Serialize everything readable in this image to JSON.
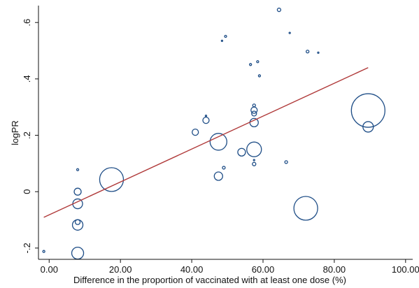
{
  "chart_data": {
    "type": "scatter",
    "xlabel": "Difference in the proportion of vaccinated with at least one dose (%)",
    "ylabel": "logPR",
    "xlim": [
      -3,
      102
    ],
    "ylim": [
      -0.24,
      0.66
    ],
    "x_ticks": [
      {
        "value": 0,
        "label": "0.00"
      },
      {
        "value": 20,
        "label": "20.00"
      },
      {
        "value": 40,
        "label": "40.00"
      },
      {
        "value": 60,
        "label": "60.00"
      },
      {
        "value": 80,
        "label": "80.00"
      },
      {
        "value": 100,
        "label": "100.00"
      }
    ],
    "y_ticks": [
      {
        "value": -0.2,
        "label": "-.2"
      },
      {
        "value": 0,
        "label": "0"
      },
      {
        "value": 0.2,
        "label": ".2"
      },
      {
        "value": 0.4,
        "label": ".4"
      },
      {
        "value": 0.6,
        "label": ".6"
      }
    ],
    "marker": "hollow circle sized by weight",
    "points": [
      {
        "x": -1.5,
        "y": -0.212,
        "size": 1.5
      },
      {
        "x": 8.0,
        "y": 0.078,
        "size": 1.5
      },
      {
        "x": 8.0,
        "y": 0.0,
        "size": 5.0
      },
      {
        "x": 8.0,
        "y": -0.043,
        "size": 7.0
      },
      {
        "x": 8.0,
        "y": -0.108,
        "size": 3.5
      },
      {
        "x": 8.0,
        "y": -0.118,
        "size": 7.5
      },
      {
        "x": 8.0,
        "y": -0.218,
        "size": 8.5
      },
      {
        "x": 17.5,
        "y": 0.043,
        "size": 17.0
      },
      {
        "x": 41.0,
        "y": 0.211,
        "size": 4.5
      },
      {
        "x": 44.0,
        "y": 0.253,
        "size": 4.5
      },
      {
        "x": 44.0,
        "y": 0.269,
        "size": 1.0
      },
      {
        "x": 47.5,
        "y": 0.177,
        "size": 12.0
      },
      {
        "x": 47.5,
        "y": 0.055,
        "size": 6.0
      },
      {
        "x": 48.5,
        "y": 0.535,
        "size": 1.0
      },
      {
        "x": 49.0,
        "y": 0.085,
        "size": 2.0
      },
      {
        "x": 49.5,
        "y": 0.551,
        "size": 1.5
      },
      {
        "x": 54.0,
        "y": 0.14,
        "size": 5.5
      },
      {
        "x": 56.5,
        "y": 0.451,
        "size": 1.5
      },
      {
        "x": 57.5,
        "y": 0.15,
        "size": 10.5
      },
      {
        "x": 57.5,
        "y": 0.245,
        "size": 6.0
      },
      {
        "x": 57.5,
        "y": 0.277,
        "size": 3.5
      },
      {
        "x": 57.5,
        "y": 0.289,
        "size": 4.5
      },
      {
        "x": 57.5,
        "y": 0.306,
        "size": 2.0
      },
      {
        "x": 57.5,
        "y": 0.098,
        "size": 2.5
      },
      {
        "x": 57.5,
        "y": 0.112,
        "size": 1.0
      },
      {
        "x": 58.5,
        "y": 0.461,
        "size": 1.5
      },
      {
        "x": 59.0,
        "y": 0.411,
        "size": 1.5
      },
      {
        "x": 64.5,
        "y": 0.645,
        "size": 2.5
      },
      {
        "x": 66.5,
        "y": 0.105,
        "size": 2.0
      },
      {
        "x": 67.5,
        "y": 0.563,
        "size": 1.0
      },
      {
        "x": 72.0,
        "y": -0.059,
        "size": 17.0
      },
      {
        "x": 72.5,
        "y": 0.497,
        "size": 2.0
      },
      {
        "x": 75.5,
        "y": 0.493,
        "size": 1.0
      },
      {
        "x": 89.5,
        "y": 0.288,
        "size": 24.0
      },
      {
        "x": 89.5,
        "y": 0.23,
        "size": 7.5
      }
    ],
    "series": [
      {
        "type": "line",
        "color": "#b03a3a",
        "x": [
          -1.5,
          89.5
        ],
        "y": [
          -0.091,
          0.44
        ]
      }
    ],
    "point_color": "#1f4e87",
    "axis_color": "#111111",
    "grid": false
  }
}
